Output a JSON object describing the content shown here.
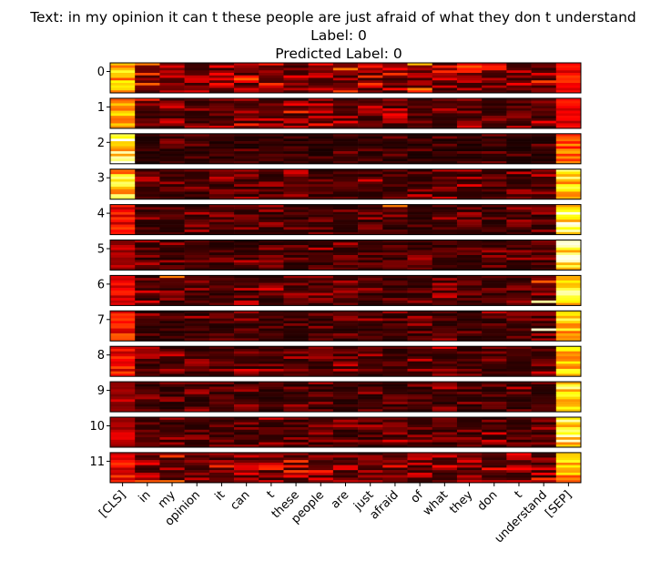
{
  "title_lines": [
    "Text: in my opinion it can t these people are just afraid of what they don t understand",
    "Label: 0",
    "Predicted Label: 0"
  ],
  "chart_data": {
    "type": "heatmap",
    "colormap": "hot",
    "x_tick_labels": [
      "[CLS]",
      "in",
      "my",
      "opinion",
      "it",
      "can",
      "t",
      "these",
      "people",
      "are",
      "just",
      "afraid",
      "of",
      "what",
      "they",
      "don",
      "t",
      "understand",
      "[SEP]"
    ],
    "y_tick_labels": [
      "0",
      "1",
      "2",
      "3",
      "4",
      "5",
      "6",
      "7",
      "8",
      "9",
      "10",
      "11"
    ],
    "rows_per_layer": 12,
    "cls_column_intensity": [
      0.75,
      0.7,
      0.98,
      0.85,
      0.45,
      0.3,
      0.4,
      0.5,
      0.45,
      0.3,
      0.35,
      0.45
    ],
    "sep_column_intensity": [
      0.45,
      0.4,
      0.6,
      0.85,
      0.95,
      0.95,
      0.9,
      0.85,
      0.85,
      0.9,
      0.9,
      0.75
    ],
    "base_intensity": [
      0.2,
      0.15,
      0.07,
      0.12,
      0.1,
      0.1,
      0.12,
      0.1,
      0.12,
      0.1,
      0.12,
      0.18
    ],
    "highlights": [
      {
        "layer": 0,
        "token": 12,
        "row": 0,
        "value": 0.65
      },
      {
        "layer": 0,
        "token": 12,
        "row": 10,
        "value": 0.55
      },
      {
        "layer": 0,
        "token": 1,
        "row": 0,
        "value": 0.55
      },
      {
        "layer": 4,
        "token": 11,
        "row": 0,
        "value": 0.55
      },
      {
        "layer": 6,
        "token": 2,
        "row": 0,
        "value": 0.55
      },
      {
        "layer": 6,
        "token": 17,
        "row": 2,
        "value": 0.5
      },
      {
        "layer": 6,
        "token": 17,
        "row": 10,
        "value": 0.9
      },
      {
        "layer": 7,
        "token": 17,
        "row": 7,
        "value": 0.95
      },
      {
        "layer": 11,
        "token": 7,
        "row": 3,
        "value": 0.45
      }
    ]
  }
}
